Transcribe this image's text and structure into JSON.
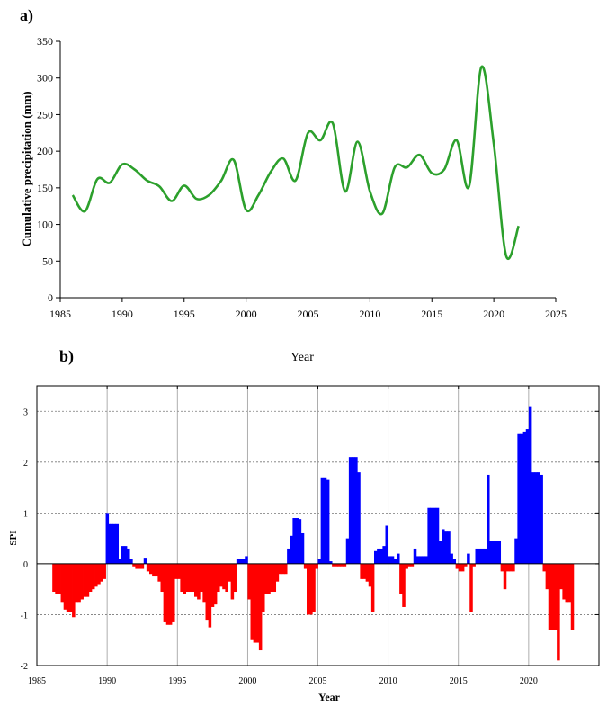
{
  "chart_data": [
    {
      "panel_label": "a)",
      "type": "line",
      "xlabel": "Year",
      "ylabel": "Cumulative precipitation (mm)",
      "xlim": [
        1985,
        2025
      ],
      "ylim": [
        0,
        350
      ],
      "x_ticks": [
        1985,
        1990,
        1995,
        2000,
        2005,
        2010,
        2015,
        2020,
        2025
      ],
      "y_ticks": [
        0,
        50,
        100,
        150,
        200,
        250,
        300,
        350
      ],
      "grid": false,
      "line_color": "#2ca02c",
      "series": [
        {
          "x": [
            1986,
            1987,
            1988,
            1989,
            1990,
            1991,
            1992,
            1993,
            1994,
            1995,
            1996,
            1997,
            1998,
            1999,
            2000,
            2001,
            2002,
            2003,
            2004,
            2005,
            2006,
            2007,
            2008,
            2009,
            2010,
            2011,
            2012,
            2013,
            2014,
            2015,
            2016,
            2017,
            2018,
            2019,
            2020,
            2021,
            2022
          ],
          "values": [
            140,
            118,
            162,
            157,
            182,
            175,
            160,
            152,
            132,
            153,
            135,
            140,
            160,
            188,
            120,
            140,
            172,
            190,
            160,
            225,
            215,
            238,
            145,
            213,
            145,
            115,
            178,
            178,
            195,
            170,
            175,
            215,
            152,
            315,
            210,
            57,
            98
          ]
        }
      ]
    },
    {
      "panel_label": "b)",
      "type": "bar",
      "xlabel": "Year",
      "ylabel": "SPI",
      "xlim": [
        1985,
        2025
      ],
      "ylim": [
        -2,
        3.5
      ],
      "x_ticks": [
        1985,
        1990,
        1995,
        2000,
        2005,
        2010,
        2015,
        2020
      ],
      "y_ticks": [
        -2,
        -1,
        0,
        1,
        2,
        3
      ],
      "grid": true,
      "positive_color": "#0000ff",
      "negative_color": "#ff0000",
      "x": [
        1986.2,
        1986.4,
        1986.6,
        1986.8,
        1987.0,
        1987.2,
        1987.4,
        1987.6,
        1987.8,
        1988.0,
        1988.2,
        1988.4,
        1988.6,
        1988.8,
        1989.0,
        1989.2,
        1989.4,
        1989.6,
        1989.8,
        1990.0,
        1990.1,
        1990.3,
        1990.5,
        1990.7,
        1990.9,
        1991.1,
        1991.3,
        1991.5,
        1991.7,
        1991.9,
        1992.1,
        1992.3,
        1992.5,
        1992.7,
        1992.9,
        1993.1,
        1993.3,
        1993.5,
        1993.7,
        1993.9,
        1994.1,
        1994.3,
        1994.5,
        1994.7,
        1994.9,
        1995.1,
        1995.3,
        1995.5,
        1995.7,
        1995.9,
        1996.1,
        1996.3,
        1996.5,
        1996.7,
        1996.9,
        1997.1,
        1997.3,
        1997.5,
        1997.7,
        1997.9,
        1998.1,
        1998.3,
        1998.5,
        1998.7,
        1998.9,
        1999.1,
        1999.3,
        1999.5,
        1999.7,
        1999.9,
        2000.1,
        2000.3,
        2000.5,
        2000.7,
        2000.9,
        2001.1,
        2001.3,
        2001.5,
        2001.7,
        2001.9,
        2002.1,
        2002.3,
        2002.5,
        2002.7,
        2002.9,
        2003.1,
        2003.3,
        2003.5,
        2003.7,
        2003.9,
        2004.1,
        2004.3,
        2004.5,
        2004.7,
        2004.9,
        2005.1,
        2005.3,
        2005.5,
        2005.7,
        2005.9,
        2006.1,
        2006.3,
        2006.5,
        2006.7,
        2006.9,
        2007.1,
        2007.3,
        2007.5,
        2007.7,
        2007.9,
        2008.1,
        2008.3,
        2008.5,
        2008.7,
        2008.9,
        2009.1,
        2009.3,
        2009.5,
        2009.7,
        2009.9,
        2010.1,
        2010.3,
        2010.5,
        2010.7,
        2010.9,
        2011.1,
        2011.3,
        2011.5,
        2011.7,
        2011.9,
        2012.1,
        2012.3,
        2012.5,
        2012.7,
        2012.9,
        2013.1,
        2013.3,
        2013.5,
        2013.7,
        2013.9,
        2014.1,
        2014.3,
        2014.5,
        2014.7,
        2014.9,
        2015.1,
        2015.3,
        2015.5,
        2015.7,
        2015.9,
        2016.1,
        2016.3,
        2016.5,
        2016.7,
        2016.9,
        2017.1,
        2017.3,
        2017.5,
        2017.7,
        2017.9,
        2018.1,
        2018.3,
        2018.5,
        2018.7,
        2018.9,
        2019.1,
        2019.3,
        2019.5,
        2019.7,
        2019.9,
        2020.1,
        2020.3,
        2020.5,
        2020.7,
        2020.9,
        2021.1,
        2021.3,
        2021.5,
        2021.7,
        2021.9,
        2022.1,
        2022.3,
        2022.5,
        2022.7,
        2022.9,
        2023.1
      ],
      "values": [
        -0.55,
        -0.6,
        -0.6,
        -0.75,
        -0.9,
        -0.95,
        -0.95,
        -1.05,
        -0.75,
        -0.75,
        -0.7,
        -0.65,
        -0.65,
        -0.55,
        -0.5,
        -0.45,
        -0.4,
        -0.35,
        -0.3,
        1.0,
        0.78,
        0.78,
        0.78,
        0.78,
        0.1,
        0.35,
        0.35,
        0.3,
        0.1,
        -0.05,
        -0.1,
        -0.1,
        -0.1,
        0.12,
        -0.15,
        -0.2,
        -0.25,
        -0.25,
        -0.35,
        -0.55,
        -1.15,
        -1.2,
        -1.2,
        -1.15,
        -0.3,
        -0.3,
        -0.55,
        -0.6,
        -0.55,
        -0.55,
        -0.55,
        -0.65,
        -0.7,
        -0.55,
        -0.75,
        -1.1,
        -1.25,
        -0.85,
        -0.8,
        -0.55,
        -0.45,
        -0.5,
        -0.55,
        -0.35,
        -0.7,
        -0.55,
        0.1,
        0.1,
        0.1,
        0.15,
        -0.7,
        -1.5,
        -1.55,
        -1.55,
        -1.7,
        -0.95,
        -0.6,
        -0.6,
        -0.55,
        -0.55,
        -0.35,
        -0.2,
        -0.2,
        -0.2,
        0.3,
        0.55,
        0.9,
        0.9,
        0.88,
        0.6,
        -0.1,
        -1.0,
        -1.0,
        -0.95,
        -0.1,
        0.1,
        1.7,
        1.7,
        1.65,
        0.05,
        -0.05,
        -0.05,
        -0.05,
        -0.05,
        -0.05,
        0.5,
        2.1,
        2.1,
        2.1,
        1.8,
        -0.3,
        -0.3,
        -0.35,
        -0.45,
        -0.95,
        0.25,
        0.3,
        0.3,
        0.35,
        0.75,
        0.15,
        0.15,
        0.1,
        0.2,
        -0.6,
        -0.85,
        -0.1,
        -0.05,
        -0.05,
        0.3,
        0.15,
        0.15,
        0.15,
        0.15,
        1.1,
        1.1,
        1.1,
        1.1,
        0.45,
        0.68,
        0.65,
        0.65,
        0.2,
        0.1,
        -0.1,
        -0.15,
        -0.15,
        -0.05,
        0.2,
        -0.95,
        -0.05,
        0.3,
        0.3,
        0.3,
        0.3,
        1.75,
        0.45,
        0.45,
        0.45,
        0.45,
        -0.15,
        -0.5,
        -0.15,
        -0.15,
        -0.15,
        0.5,
        2.55,
        2.55,
        2.6,
        2.65,
        3.1,
        1.8,
        1.8,
        1.8,
        1.75,
        -0.15,
        -0.5,
        -1.3,
        -1.3,
        -1.3,
        -1.9,
        -0.5,
        -0.7,
        -0.75,
        -0.75,
        -1.3
      ]
    }
  ]
}
